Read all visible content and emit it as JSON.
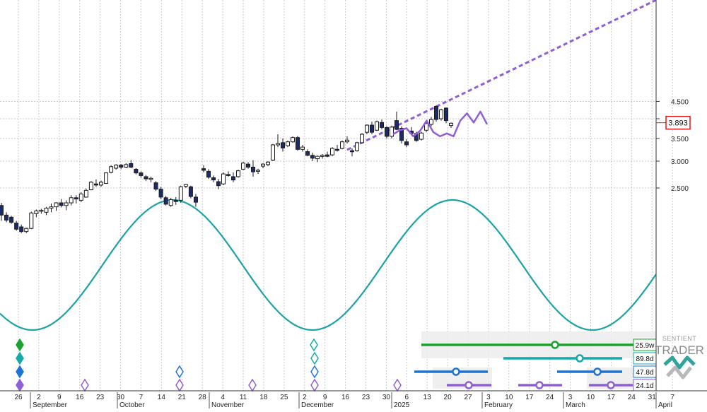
{
  "chart_data": {
    "type": "candlestick",
    "y_axis": {
      "side": "right",
      "scale": "log",
      "ylim": [
        1.7,
        4.85
      ],
      "ticks": [
        "4.500",
        "4.000",
        "3.500",
        "3.000",
        "2.500"
      ]
    },
    "x_axis": {
      "day_ticks": [
        "26",
        "2",
        "9",
        "16",
        "23",
        "30",
        "7",
        "14",
        "21",
        "28",
        "4",
        "11",
        "18",
        "25",
        "2",
        "9",
        "16",
        "23",
        "30",
        "6",
        "13",
        "20",
        "27",
        "3",
        "10",
        "17",
        "24",
        "3",
        "10",
        "17",
        "24",
        "31",
        "7"
      ],
      "months": [
        "September",
        "October",
        "November",
        "December",
        "2025",
        "February",
        "March",
        "April"
      ]
    },
    "last_price": {
      "label": "3.893",
      "color": "#e0171f"
    },
    "candles": [
      [
        2.22,
        2.26,
        2.0,
        2.08
      ],
      [
        2.08,
        2.12,
        1.98,
        2.01
      ],
      [
        2.05,
        2.07,
        1.96,
        1.98
      ],
      [
        1.97,
        2.0,
        1.87,
        1.89
      ],
      [
        1.92,
        1.95,
        1.84,
        1.86
      ],
      [
        1.86,
        1.91,
        1.84,
        1.9
      ],
      [
        1.9,
        2.13,
        1.89,
        2.11
      ],
      [
        2.1,
        2.16,
        2.05,
        2.14
      ],
      [
        2.14,
        2.17,
        2.1,
        2.15
      ],
      [
        2.12,
        2.2,
        2.08,
        2.18
      ],
      [
        2.18,
        2.25,
        2.12,
        2.2
      ],
      [
        2.2,
        2.27,
        2.14,
        2.26
      ],
      [
        2.26,
        2.32,
        2.19,
        2.22
      ],
      [
        2.22,
        2.3,
        2.15,
        2.26
      ],
      [
        2.26,
        2.38,
        2.22,
        2.34
      ],
      [
        2.34,
        2.38,
        2.25,
        2.32
      ],
      [
        2.3,
        2.43,
        2.27,
        2.4
      ],
      [
        2.35,
        2.49,
        2.34,
        2.46
      ],
      [
        2.47,
        2.62,
        2.46,
        2.6
      ],
      [
        2.57,
        2.65,
        2.52,
        2.55
      ],
      [
        2.55,
        2.63,
        2.52,
        2.6
      ],
      [
        2.58,
        2.78,
        2.57,
        2.77
      ],
      [
        2.78,
        2.92,
        2.76,
        2.89
      ],
      [
        2.86,
        2.94,
        2.83,
        2.92
      ],
      [
        2.92,
        2.94,
        2.84,
        2.88
      ],
      [
        2.88,
        2.96,
        2.86,
        2.93
      ],
      [
        2.95,
        3.02,
        2.86,
        2.88
      ],
      [
        2.84,
        2.86,
        2.74,
        2.77
      ],
      [
        2.77,
        2.8,
        2.68,
        2.72
      ],
      [
        2.7,
        2.73,
        2.62,
        2.66
      ],
      [
        2.65,
        2.7,
        2.6,
        2.67
      ],
      [
        2.59,
        2.62,
        2.45,
        2.48
      ],
      [
        2.48,
        2.52,
        2.32,
        2.35
      ],
      [
        2.34,
        2.37,
        2.22,
        2.24
      ],
      [
        2.22,
        2.34,
        2.2,
        2.31
      ],
      [
        2.3,
        2.35,
        2.23,
        2.28
      ],
      [
        2.3,
        2.54,
        2.26,
        2.52
      ],
      [
        2.53,
        2.57,
        2.5,
        2.56
      ],
      [
        2.52,
        2.54,
        2.33,
        2.36
      ],
      [
        2.35,
        2.4,
        2.2,
        2.27
      ],
      [
        2.85,
        2.92,
        2.78,
        2.82
      ],
      [
        2.8,
        2.84,
        2.66,
        2.69
      ],
      [
        2.68,
        2.72,
        2.6,
        2.64
      ],
      [
        2.61,
        2.66,
        2.48,
        2.54
      ],
      [
        2.57,
        2.78,
        2.55,
        2.75
      ],
      [
        2.74,
        2.8,
        2.7,
        2.72
      ],
      [
        2.7,
        2.78,
        2.6,
        2.64
      ],
      [
        2.7,
        2.83,
        2.68,
        2.81
      ],
      [
        2.84,
        2.99,
        2.82,
        2.96
      ],
      [
        2.94,
        2.98,
        2.85,
        2.88
      ],
      [
        2.88,
        3.02,
        2.7,
        2.79
      ],
      [
        2.8,
        2.85,
        2.75,
        2.82
      ],
      [
        2.9,
        2.96,
        2.86,
        2.94
      ],
      [
        2.93,
        3.0,
        2.9,
        2.98
      ],
      [
        3.02,
        3.37,
        3.0,
        3.35
      ],
      [
        3.35,
        3.6,
        3.3,
        3.38
      ],
      [
        3.4,
        3.5,
        3.2,
        3.28
      ],
      [
        3.33,
        3.45,
        3.3,
        3.42
      ],
      [
        3.42,
        3.55,
        3.4,
        3.52
      ],
      [
        3.52,
        3.56,
        3.22,
        3.25
      ],
      [
        3.25,
        3.35,
        3.2,
        3.3
      ],
      [
        3.2,
        3.25,
        3.1,
        3.12
      ],
      [
        3.12,
        3.18,
        3.0,
        3.06
      ],
      [
        3.05,
        3.12,
        2.98,
        3.1
      ],
      [
        3.1,
        3.15,
        3.05,
        3.12
      ],
      [
        3.13,
        3.2,
        3.08,
        3.1
      ],
      [
        3.13,
        3.3,
        3.1,
        3.27
      ],
      [
        3.25,
        3.35,
        3.2,
        3.24
      ],
      [
        3.27,
        3.45,
        3.25,
        3.42
      ],
      [
        3.42,
        3.55,
        3.38,
        3.46
      ],
      [
        3.22,
        3.27,
        3.1,
        3.2
      ],
      [
        3.22,
        3.42,
        3.2,
        3.4
      ],
      [
        3.4,
        3.63,
        3.38,
        3.6
      ],
      [
        3.65,
        3.85,
        3.6,
        3.83
      ],
      [
        3.83,
        3.92,
        3.6,
        3.65
      ],
      [
        3.7,
        3.95,
        3.68,
        3.92
      ],
      [
        3.9,
        3.98,
        3.72,
        3.77
      ],
      [
        3.77,
        3.8,
        3.5,
        3.55
      ],
      [
        3.55,
        3.82,
        3.5,
        3.78
      ],
      [
        3.95,
        4.2,
        3.7,
        3.72
      ],
      [
        3.75,
        3.8,
        3.38,
        3.45
      ],
      [
        3.42,
        3.48,
        3.3,
        3.35
      ],
      [
        3.68,
        3.78,
        3.6,
        3.62
      ],
      [
        3.62,
        3.66,
        3.42,
        3.45
      ],
      [
        3.48,
        3.66,
        3.45,
        3.63
      ],
      [
        3.7,
        3.9,
        3.65,
        3.87
      ],
      [
        3.85,
        4.05,
        3.8,
        3.98
      ],
      [
        4.35,
        4.38,
        3.92,
        3.98
      ],
      [
        4.0,
        4.28,
        3.95,
        4.25
      ],
      [
        4.3,
        4.32,
        3.88,
        3.95
      ],
      [
        3.82,
        3.9,
        3.76,
        3.88
      ]
    ],
    "projection_line": [
      3.6,
      3.7,
      3.75,
      3.55,
      3.68,
      3.95,
      3.65,
      3.55,
      3.62,
      3.55,
      3.95,
      4.15,
      3.9,
      4.2,
      3.85
    ],
    "cycle_wave": {
      "type": "sine",
      "period_days": 111,
      "color": "#1ca3a5"
    },
    "trendline": {
      "from": [
        "2024-12-16",
        3.1
      ],
      "to": [
        "2025-04-05",
        4.85
      ],
      "color": "#8f5fd6"
    },
    "cycle_bars": [
      {
        "label": "25.9w",
        "color": "#1aa32f"
      },
      {
        "label": "89.8d",
        "color": "#15aaa8"
      },
      {
        "label": "47.8d",
        "color": "#1f74d2"
      },
      {
        "label": "24.1d",
        "color": "#8f5fd6"
      }
    ],
    "logo": {
      "line1": "SENTIENT",
      "line2": "TRADER"
    }
  }
}
